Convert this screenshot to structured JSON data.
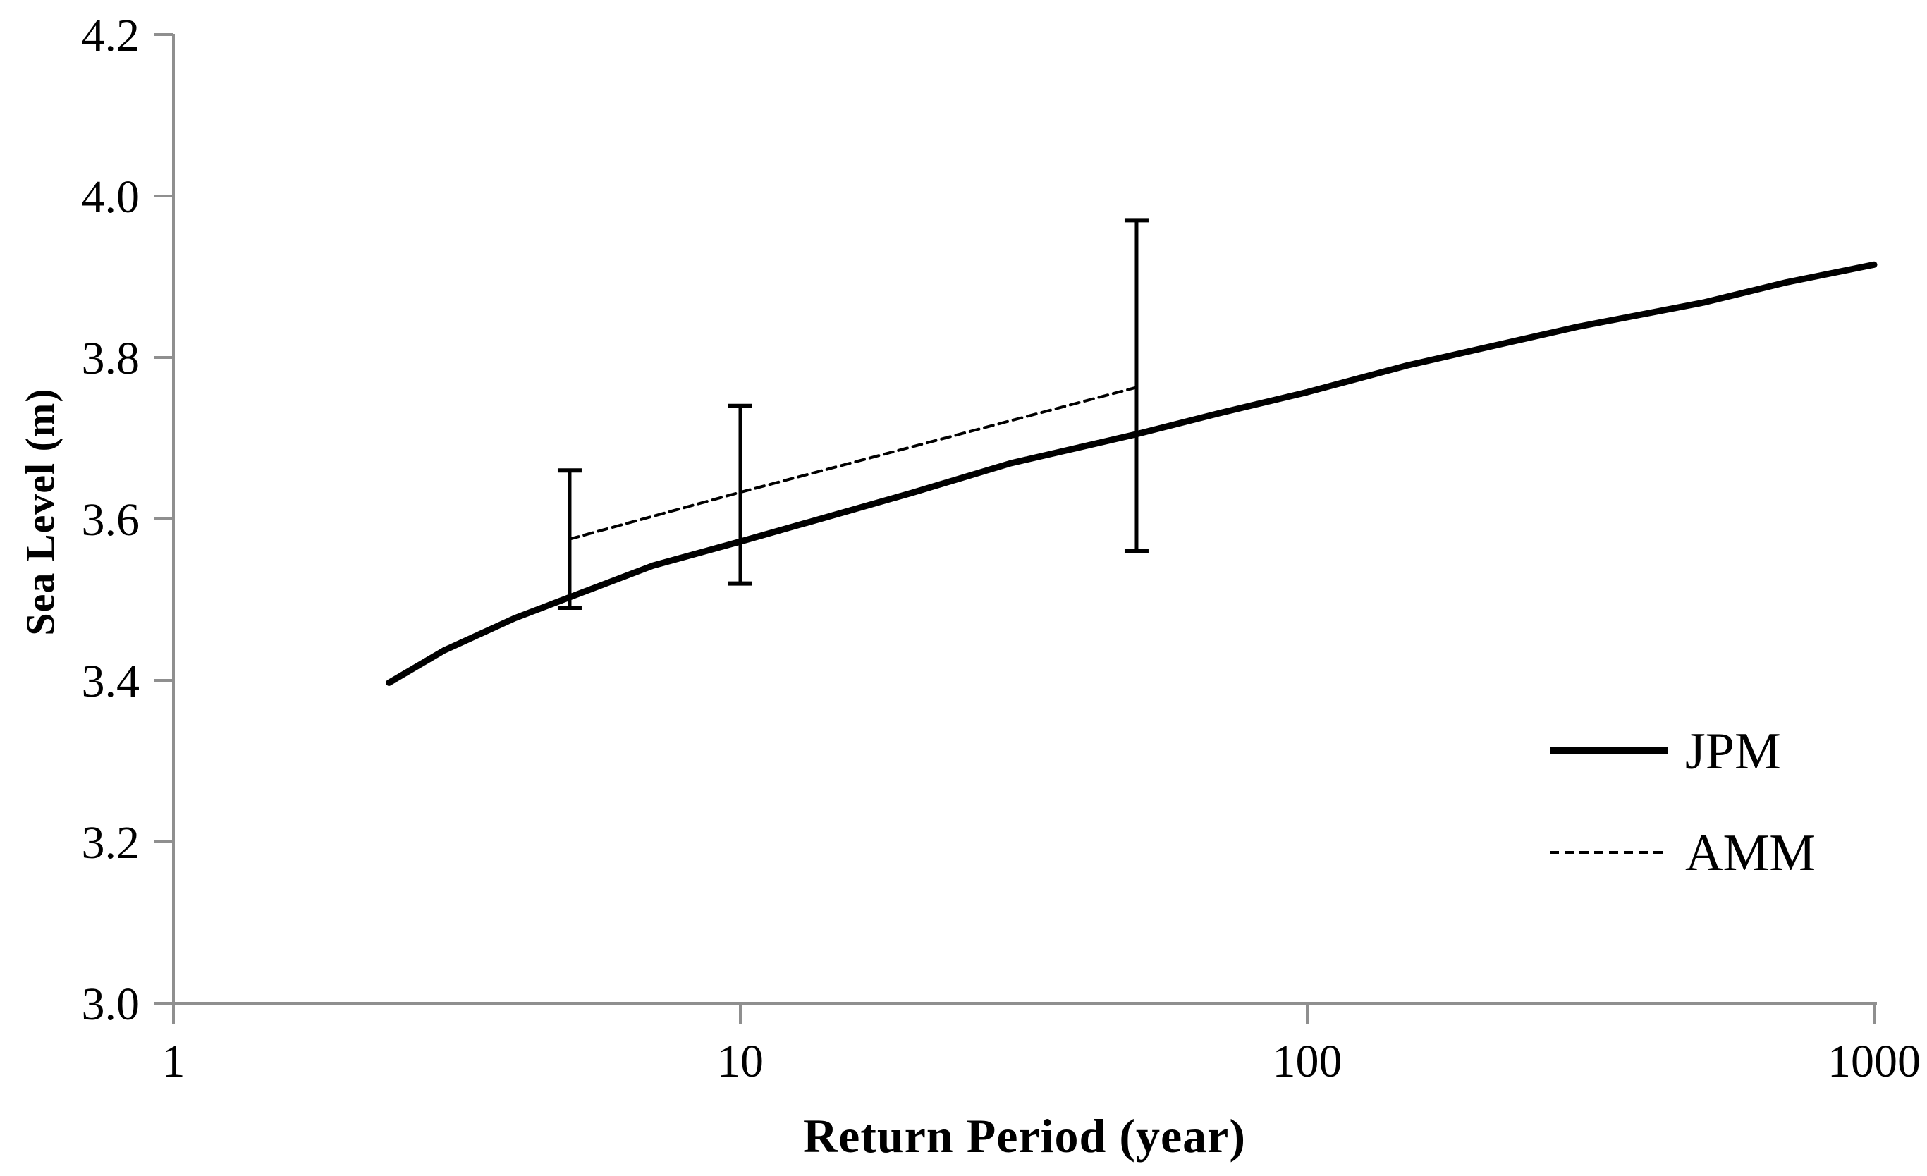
{
  "chart_data": {
    "type": "line",
    "title": "",
    "xlabel": "Return Period (year)",
    "ylabel": "Sea Level (m)",
    "x_scale": "log10",
    "xlim": [
      1,
      1000
    ],
    "ylim": [
      3.0,
      4.2
    ],
    "x_ticks": [
      "1",
      "10",
      "100",
      "1000"
    ],
    "y_ticks": [
      "3.0",
      "3.2",
      "3.4",
      "3.6",
      "3.8",
      "4.0",
      "4.2"
    ],
    "grid": false,
    "legend_position": "lower-right",
    "axis_color": "#8f8f8f",
    "line_color": "#000000",
    "series": [
      {
        "name": "JPM",
        "line_style": "solid",
        "color": "#000000",
        "points": [
          [
            2.4,
            3.397
          ],
          [
            3,
            3.437
          ],
          [
            4,
            3.477
          ],
          [
            5,
            3.503
          ],
          [
            7,
            3.542
          ],
          [
            10,
            3.572
          ],
          [
            15,
            3.607
          ],
          [
            20,
            3.632
          ],
          [
            30,
            3.669
          ],
          [
            50,
            3.705
          ],
          [
            70,
            3.731
          ],
          [
            100,
            3.757
          ],
          [
            150,
            3.79
          ],
          [
            200,
            3.81
          ],
          [
            300,
            3.838
          ],
          [
            500,
            3.868
          ],
          [
            700,
            3.893
          ],
          [
            1000,
            3.915
          ]
        ]
      },
      {
        "name": "AMM",
        "line_style": "dashed",
        "color": "#000000",
        "points": [
          [
            5,
            3.575
          ],
          [
            10,
            3.633
          ],
          [
            50,
            3.763
          ]
        ]
      }
    ],
    "error_bars": {
      "attached_to": "AMM",
      "values": [
        {
          "x": 5,
          "low": 3.49,
          "high": 3.66
        },
        {
          "x": 10,
          "low": 3.52,
          "high": 3.74
        },
        {
          "x": 50,
          "low": 3.56,
          "high": 3.97
        }
      ]
    },
    "legend": [
      "JPM",
      "AMM"
    ]
  }
}
